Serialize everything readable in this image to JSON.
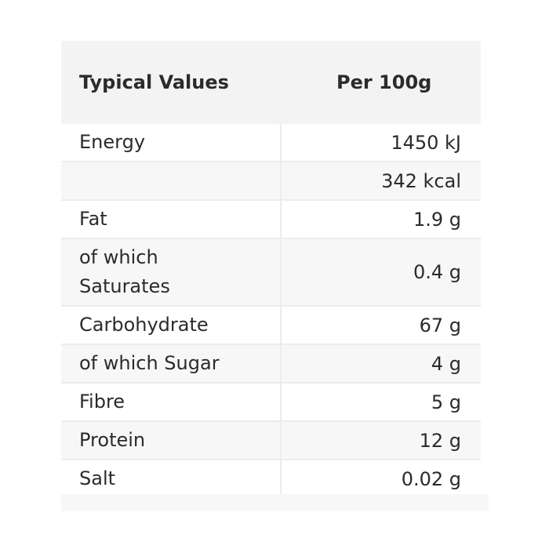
{
  "table": {
    "header": {
      "col1": "Typical Values",
      "col2": "Per 100g"
    },
    "rows": [
      {
        "label": "Energy",
        "value": "1450 kJ"
      },
      {
        "label": "",
        "value": "342 kcal"
      },
      {
        "label": "Fat",
        "value": "1.9 g"
      },
      {
        "label": "of which Saturates",
        "value": "0.4 g"
      },
      {
        "label": "Carbohydrate",
        "value": "67 g"
      },
      {
        "label": "of which Sugar",
        "value": "4 g"
      },
      {
        "label": "Fibre",
        "value": "5 g"
      },
      {
        "label": "Protein",
        "value": "12 g"
      },
      {
        "label": "Salt",
        "value": "0.02 g"
      }
    ]
  },
  "colors": {
    "header_bg": "#f3f3f3",
    "stripe_bg": "#f7f7f7",
    "border": "#ececec",
    "text": "#2b2b2b"
  }
}
